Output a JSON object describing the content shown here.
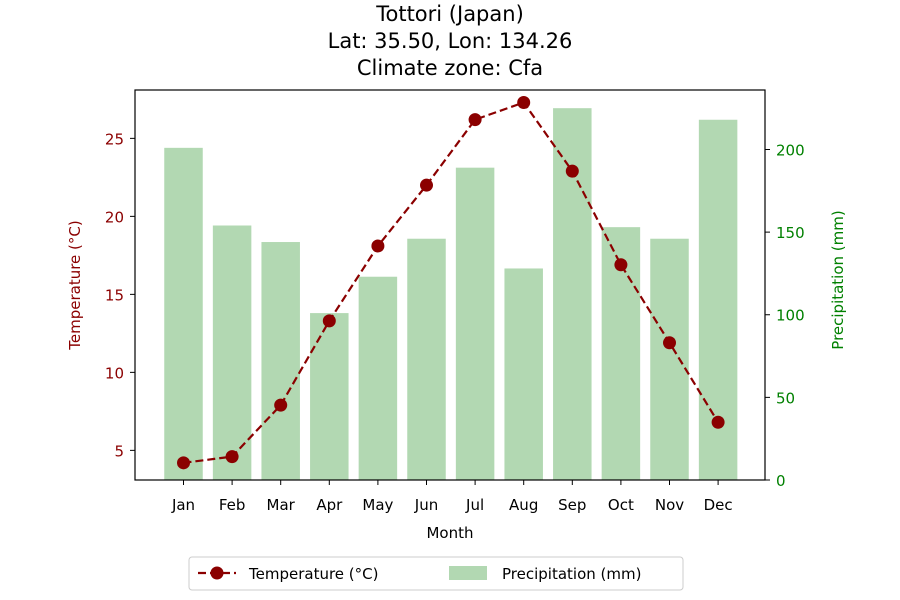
{
  "chart_data": {
    "type": "bar+line",
    "title_lines": [
      "Tottori (Japan)",
      "Lat: 35.50, Lon: 134.26",
      "Climate zone: Cfa"
    ],
    "xlabel": "Month",
    "ylabel_left": "Temperature (°C)",
    "ylabel_right": "Precipitation (mm)",
    "categories": [
      "Jan",
      "Feb",
      "Mar",
      "Apr",
      "May",
      "Jun",
      "Jul",
      "Aug",
      "Sep",
      "Oct",
      "Nov",
      "Dec"
    ],
    "series": [
      {
        "name": "Temperature (°C)",
        "kind": "line",
        "axis": "left",
        "color": "#8b0000",
        "values": [
          4.2,
          4.6,
          7.9,
          13.3,
          18.1,
          22.0,
          26.2,
          27.3,
          22.9,
          16.9,
          11.9,
          6.8
        ]
      },
      {
        "name": "Precipitation (mm)",
        "kind": "bar",
        "axis": "right",
        "color": "#b2d8b2",
        "values": [
          201,
          154,
          144,
          101,
          123,
          146,
          189,
          128,
          225,
          153,
          146,
          218
        ]
      }
    ],
    "ylim_left": [
      3.1,
      28.1
    ],
    "ylim_right": [
      0,
      236
    ],
    "yticks_left": [
      5,
      10,
      15,
      20,
      25
    ],
    "yticks_right": [
      0,
      50,
      100,
      150,
      200
    ],
    "left_axis_color": "#8b0000",
    "right_axis_color": "#008000",
    "legend_position": "bottom-center",
    "grid": false
  }
}
